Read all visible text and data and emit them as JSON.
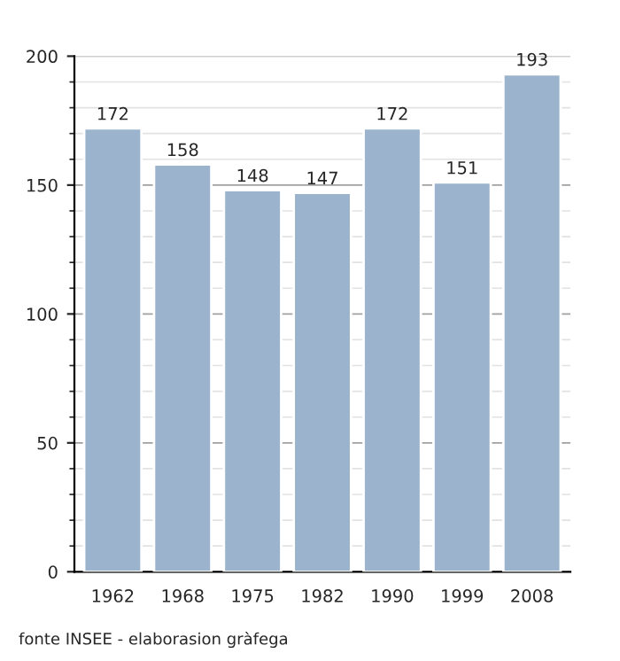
{
  "chart_data": {
    "type": "bar",
    "categories": [
      "1962",
      "1968",
      "1975",
      "1982",
      "1990",
      "1999",
      "2008"
    ],
    "values": [
      172,
      158,
      148,
      147,
      172,
      151,
      193
    ],
    "color": "#9bb3cc",
    "ylim": [
      0,
      200
    ],
    "yticks": [
      0,
      50,
      100,
      150,
      200
    ],
    "grid": "y",
    "data_labels": true,
    "annotations": [
      "fonte INSEE - elaborasion gràfega"
    ]
  }
}
